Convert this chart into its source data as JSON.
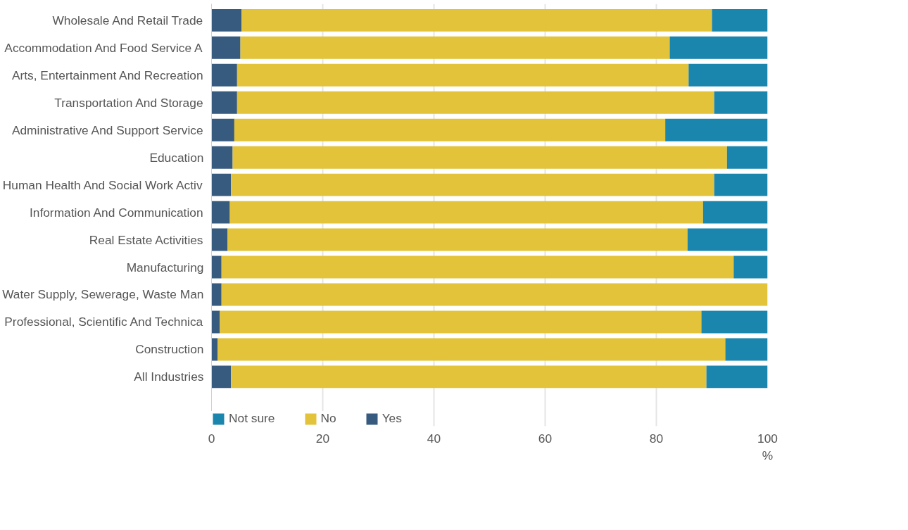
{
  "chart_data": {
    "type": "bar",
    "orientation": "horizontal",
    "stacked": true,
    "xlabel": "%",
    "categories": [
      "Wholesale And Retail Trade",
      "Accommodation And Food Service A",
      "Arts, Entertainment And Recreation",
      "Transportation And Storage",
      "Administrative And Support Service",
      "Education",
      "Human Health And Social Work Activ",
      "Information And Communication",
      "Real Estate Activities",
      "Manufacturing",
      "Water Supply, Sewerage, Waste Man",
      "Professional, Scientific And Technica",
      "Construction",
      "All Industries"
    ],
    "series": [
      {
        "name": "Yes",
        "color": "#375a7f",
        "values": [
          5.4,
          5.2,
          4.6,
          4.6,
          4.1,
          3.8,
          3.5,
          3.3,
          2.9,
          1.8,
          1.8,
          1.5,
          1.1,
          3.5
        ]
      },
      {
        "name": "No",
        "color": "#e2c33a",
        "values": [
          84.6,
          77.2,
          81.2,
          85.8,
          77.5,
          88.9,
          86.9,
          85.1,
          82.7,
          92.1,
          98.2,
          86.6,
          91.3,
          85.5
        ]
      },
      {
        "name": "Not sure",
        "color": "#1a85ad",
        "values": [
          10.0,
          17.6,
          14.2,
          9.6,
          18.4,
          7.3,
          9.6,
          11.6,
          14.4,
          6.1,
          0,
          11.9,
          7.6,
          11.0
        ]
      }
    ],
    "xlim": [
      0,
      100
    ],
    "xticks": [
      0,
      20,
      40,
      60,
      80,
      100
    ],
    "grid": "x",
    "legend": "bottom left"
  }
}
